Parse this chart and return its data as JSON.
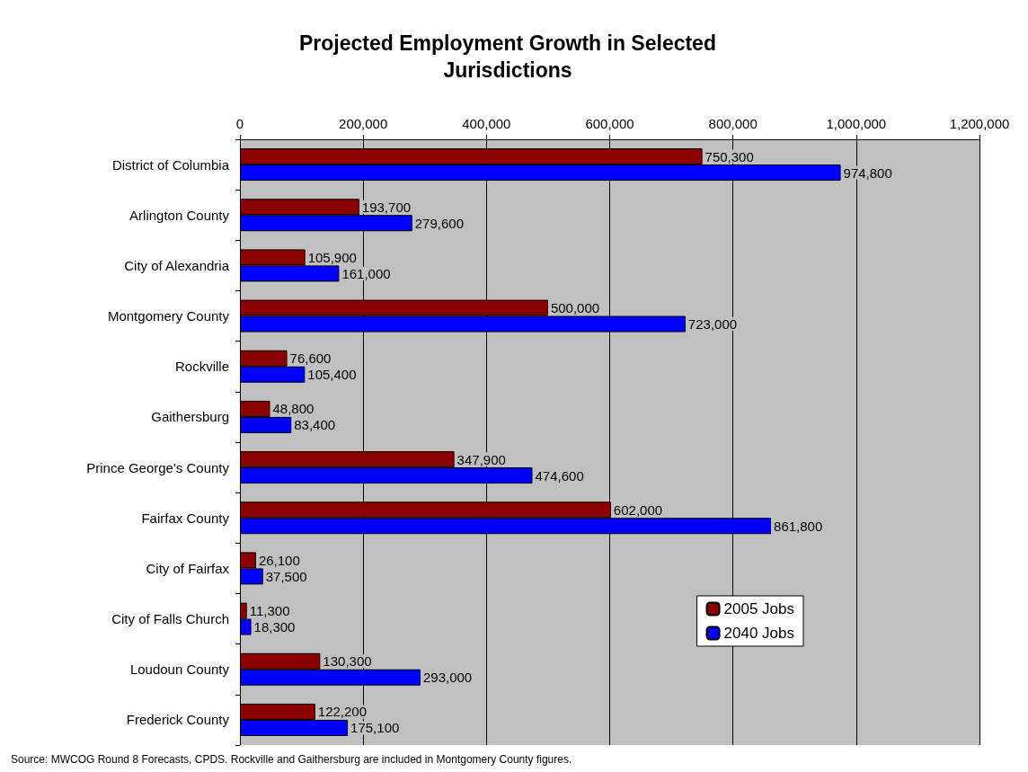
{
  "chart_data": {
    "type": "bar",
    "orientation": "horizontal",
    "title": "Projected Employment Growth in Selected\nJurisdictions",
    "categories": [
      "District of Columbia",
      "Arlington County",
      "City of Alexandria",
      "Montgomery County",
      "Rockville",
      "Gaithersburg",
      "Prince George's County",
      "Fairfax County",
      "City of Fairfax",
      "City of Falls Church",
      "Loudoun County",
      "Frederick County"
    ],
    "series": [
      {
        "name": "2005 Jobs",
        "color": "#8b0000",
        "values": [
          750300,
          193700,
          105900,
          500000,
          76600,
          48800,
          347900,
          602000,
          26100,
          11300,
          130300,
          122200
        ],
        "value_labels": [
          "750,300",
          "193,700",
          "105,900",
          "500,000",
          "76,600",
          "48,800",
          "347,900",
          "602,000",
          "26,100",
          "11,300",
          "130,300",
          "122,200"
        ]
      },
      {
        "name": "2040 Jobs",
        "color": "#0000ff",
        "values": [
          974800,
          279600,
          161000,
          723000,
          105400,
          83400,
          474600,
          861800,
          37500,
          18300,
          293000,
          175100
        ],
        "value_labels": [
          "974,800",
          "279,600",
          "161,000",
          "723,000",
          "105,400",
          "83,400",
          "474,600",
          "861,800",
          "37,500",
          "18,300",
          "293,000",
          "175,100"
        ]
      }
    ],
    "xlim": [
      0,
      1200000
    ],
    "xticks": [
      0,
      {
        "value": 200000,
        "label": "200,000"
      },
      {
        "value": 400000,
        "label": "400,000"
      },
      {
        "value": 600000,
        "label": "600,000"
      },
      {
        "value": 800000,
        "label": "800,000"
      },
      {
        "value": 1000000,
        "label": "1,000,000"
      },
      {
        "value": 1200000,
        "label": "1,200,000"
      }
    ],
    "grid": "x",
    "legend": "bottom right",
    "annotations": [
      "Source: MWCOG Round 8 Forecasts, CPDS. Rockville and Gaithersburg are included in Montgomery County figures."
    ]
  }
}
